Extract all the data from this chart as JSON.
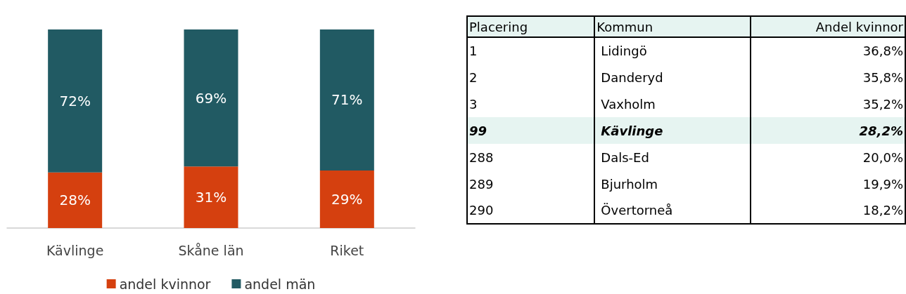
{
  "chart_data": [
    {
      "type": "bar",
      "stacked": true,
      "categories": [
        "Kävlinge",
        "Skåne län",
        "Riket"
      ],
      "series": [
        {
          "name": "andel kvinnor",
          "color": "#d5400f",
          "values": [
            28,
            31,
            29
          ],
          "value_labels": [
            "28%",
            "31%",
            "29%"
          ]
        },
        {
          "name": "andel män",
          "color": "#215a63",
          "values": [
            72,
            69,
            71
          ],
          "value_labels": [
            "72%",
            "69%",
            "71%"
          ]
        }
      ],
      "legend": "bottom"
    },
    {
      "type": "other",
      "categories": [
        "Placering",
        "Kommun",
        "Andel kvinnor"
      ],
      "cell_labels": [
        [
          "1",
          "Lidingö",
          "36,8%"
        ],
        [
          "2",
          "Danderyd",
          "35,8%"
        ],
        [
          "3",
          "Vaxholm",
          "35,2%"
        ],
        [
          "99",
          "Kävlinge",
          "28,2%"
        ],
        [
          "288",
          "Dals-Ed",
          "20,0%"
        ],
        [
          "289",
          "Bjurholm",
          "19,9%"
        ],
        [
          "290",
          "Övertorneå",
          "18,2%"
        ]
      ]
    }
  ]
}
